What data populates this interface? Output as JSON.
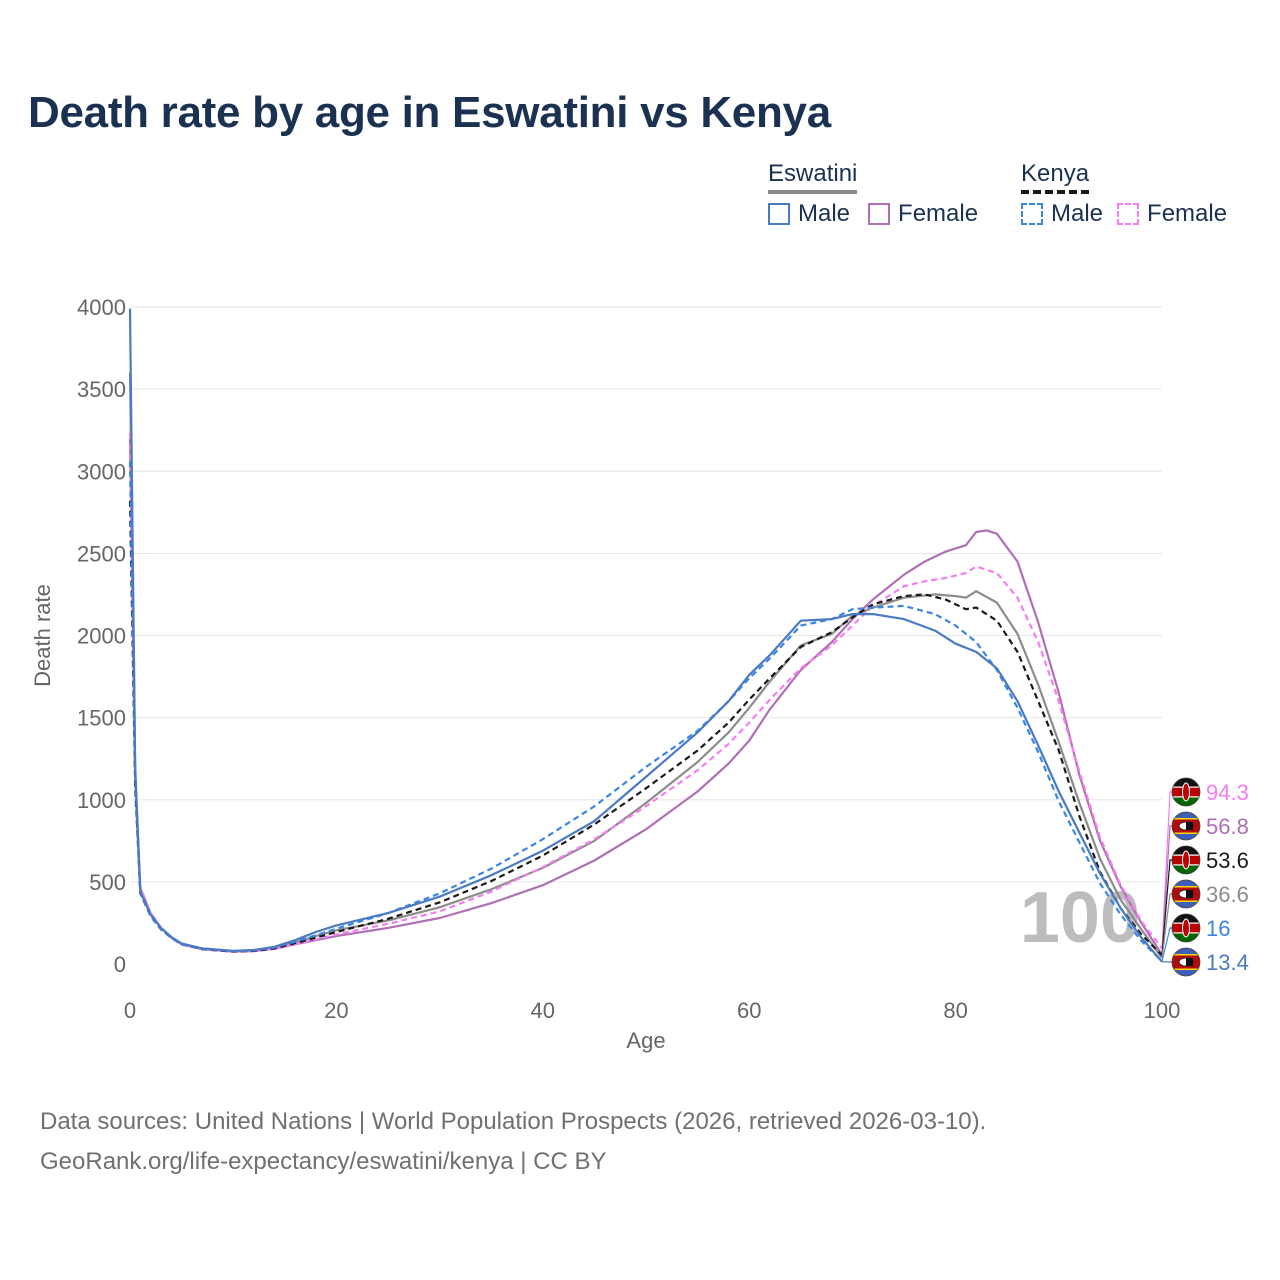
{
  "chart_data": {
    "type": "line",
    "title": "Death rate by age in Eswatini vs Kenya",
    "xlabel": "Age",
    "ylabel": "Death rate",
    "xlim": [
      0,
      100
    ],
    "ylim": [
      0,
      4000
    ],
    "x_ticks": [
      0,
      20,
      40,
      60,
      80,
      100
    ],
    "y_ticks": [
      0,
      500,
      1000,
      1500,
      2000,
      2500,
      3000,
      3500,
      4000
    ],
    "grid": true,
    "year_watermark": "100",
    "legend": {
      "groups": [
        {
          "name": "Eswatini",
          "items": [
            "Male",
            "Female"
          ]
        },
        {
          "name": "Kenya",
          "items": [
            "Male",
            "Female"
          ]
        }
      ]
    },
    "series": [
      {
        "name": "Eswatini Male",
        "country": "Eswatini",
        "sex": "Male",
        "color": "#4a7ac4",
        "dash": "solid",
        "x": [
          0,
          0.5,
          1,
          2,
          3,
          4,
          5,
          7,
          10,
          12,
          14,
          16,
          18,
          20,
          25,
          30,
          35,
          40,
          45,
          50,
          55,
          58,
          60,
          62,
          65,
          68,
          70,
          72,
          75,
          78,
          80,
          82,
          84,
          86,
          88,
          90,
          92,
          94,
          96,
          98,
          100
        ],
        "y": [
          3990,
          1200,
          440,
          300,
          220,
          165,
          125,
          95,
          80,
          85,
          105,
          145,
          195,
          235,
          310,
          410,
          540,
          690,
          870,
          1140,
          1410,
          1600,
          1760,
          1880,
          2090,
          2100,
          2130,
          2130,
          2100,
          2030,
          1950,
          1900,
          1800,
          1600,
          1330,
          1050,
          800,
          550,
          340,
          160,
          13.4
        ],
        "end_label": "13.4"
      },
      {
        "name": "Eswatini Female",
        "country": "Eswatini",
        "sex": "Female",
        "color": "#b06fb4",
        "dash": "solid",
        "x": [
          0,
          0.5,
          1,
          2,
          3,
          4,
          5,
          7,
          10,
          12,
          14,
          16,
          18,
          20,
          25,
          30,
          35,
          40,
          45,
          50,
          55,
          58,
          60,
          62,
          65,
          68,
          70,
          72,
          75,
          77,
          79,
          81,
          82,
          83,
          84,
          86,
          88,
          90,
          92,
          94,
          96,
          98,
          100
        ],
        "y": [
          3200,
          1100,
          460,
          310,
          220,
          160,
          120,
          90,
          75,
          78,
          92,
          120,
          145,
          170,
          220,
          280,
          370,
          480,
          630,
          820,
          1050,
          1220,
          1360,
          1550,
          1790,
          1960,
          2100,
          2220,
          2370,
          2450,
          2510,
          2550,
          2630,
          2640,
          2620,
          2450,
          2080,
          1650,
          1150,
          750,
          470,
          250,
          56.8
        ],
        "end_label": "56.8"
      },
      {
        "name": "Kenya Male",
        "country": "Kenya",
        "sex": "Male",
        "color": "#3b86e3",
        "dash": "dashed",
        "x": [
          0,
          0.5,
          1,
          2,
          3,
          4,
          5,
          7,
          10,
          12,
          14,
          16,
          18,
          20,
          25,
          30,
          35,
          40,
          45,
          50,
          55,
          58,
          60,
          62,
          65,
          68,
          70,
          72,
          75,
          78,
          80,
          82,
          84,
          86,
          88,
          90,
          92,
          94,
          96,
          98,
          100
        ],
        "y": [
          3060,
          1150,
          430,
          290,
          210,
          160,
          120,
          92,
          78,
          82,
          100,
          135,
          175,
          215,
          310,
          430,
          580,
          760,
          960,
          1200,
          1420,
          1600,
          1740,
          1860,
          2060,
          2100,
          2160,
          2170,
          2180,
          2130,
          2060,
          1960,
          1790,
          1560,
          1290,
          990,
          740,
          490,
          300,
          140,
          16
        ],
        "end_label": "16"
      },
      {
        "name": "Kenya Female",
        "country": "Kenya",
        "sex": "Female",
        "color": "#f57df0",
        "dash": "dashed",
        "x": [
          0,
          0.5,
          1,
          2,
          3,
          4,
          5,
          7,
          10,
          12,
          14,
          16,
          18,
          20,
          25,
          30,
          35,
          40,
          45,
          50,
          55,
          58,
          60,
          62,
          65,
          68,
          70,
          72,
          75,
          77,
          79,
          81,
          82,
          84,
          86,
          88,
          90,
          92,
          94,
          96,
          98,
          100
        ],
        "y": [
          3230,
          1150,
          470,
          310,
          220,
          160,
          120,
          90,
          75,
          80,
          92,
          122,
          150,
          180,
          245,
          320,
          440,
          590,
          760,
          960,
          1180,
          1340,
          1470,
          1610,
          1800,
          1940,
          2060,
          2180,
          2300,
          2330,
          2350,
          2380,
          2420,
          2380,
          2230,
          1960,
          1600,
          1170,
          770,
          480,
          260,
          94.3
        ],
        "end_label": "94.3"
      },
      {
        "name": "Kenya Both",
        "country": "Kenya",
        "sex": "Both",
        "color": "#1a1a1a",
        "dash": "dashed",
        "x": [
          0,
          0.5,
          1,
          2,
          3,
          4,
          5,
          7,
          10,
          12,
          14,
          16,
          18,
          20,
          25,
          30,
          35,
          40,
          45,
          50,
          55,
          58,
          60,
          62,
          65,
          68,
          70,
          72,
          75,
          77,
          79,
          81,
          82,
          84,
          86,
          88,
          90,
          92,
          94,
          96,
          98,
          100
        ],
        "y": [
          2820,
          1080,
          430,
          295,
          210,
          160,
          120,
          90,
          76,
          80,
          95,
          128,
          160,
          195,
          275,
          375,
          505,
          660,
          850,
          1070,
          1300,
          1470,
          1610,
          1740,
          1930,
          2020,
          2110,
          2190,
          2240,
          2250,
          2220,
          2160,
          2170,
          2090,
          1900,
          1600,
          1300,
          900,
          560,
          340,
          180,
          53.6
        ],
        "end_label": "53.6"
      },
      {
        "name": "Eswatini Both",
        "country": "Eswatini",
        "sex": "Both",
        "color": "#8c8c8c",
        "dash": "solid",
        "x": [
          0,
          0.5,
          1,
          2,
          3,
          4,
          5,
          7,
          10,
          12,
          14,
          16,
          18,
          20,
          25,
          30,
          35,
          40,
          45,
          50,
          55,
          58,
          60,
          62,
          65,
          68,
          70,
          72,
          75,
          78,
          80,
          81,
          82,
          84,
          86,
          88,
          90,
          92,
          94,
          96,
          98,
          100
        ],
        "y": [
          3600,
          1150,
          450,
          305,
          220,
          162,
          122,
          92,
          78,
          82,
          98,
          130,
          170,
          205,
          265,
          345,
          455,
          585,
          750,
          980,
          1230,
          1410,
          1560,
          1720,
          1940,
          2010,
          2120,
          2170,
          2230,
          2250,
          2240,
          2230,
          2270,
          2200,
          2010,
          1700,
          1350,
          980,
          640,
          390,
          210,
          36.6
        ],
        "end_label": "36.6"
      }
    ]
  },
  "footer": {
    "sources": "Data sources: United Nations | World Population Prospects (2026, retrieved 2026-03-10).",
    "link": "GeoRank.org/life-expectancy/eswatini/kenya | CC BY"
  },
  "flags": {
    "Eswatini": {
      "colors": [
        "#3e5eb9",
        "#ffd900",
        "#b10c0c",
        "#111111",
        "#ffffff"
      ],
      "icon": "eswatini-flag-icon"
    },
    "Kenya": {
      "colors": [
        "#111111",
        "#bb0000",
        "#006600",
        "#ffffff"
      ],
      "icon": "kenya-flag-icon"
    }
  }
}
